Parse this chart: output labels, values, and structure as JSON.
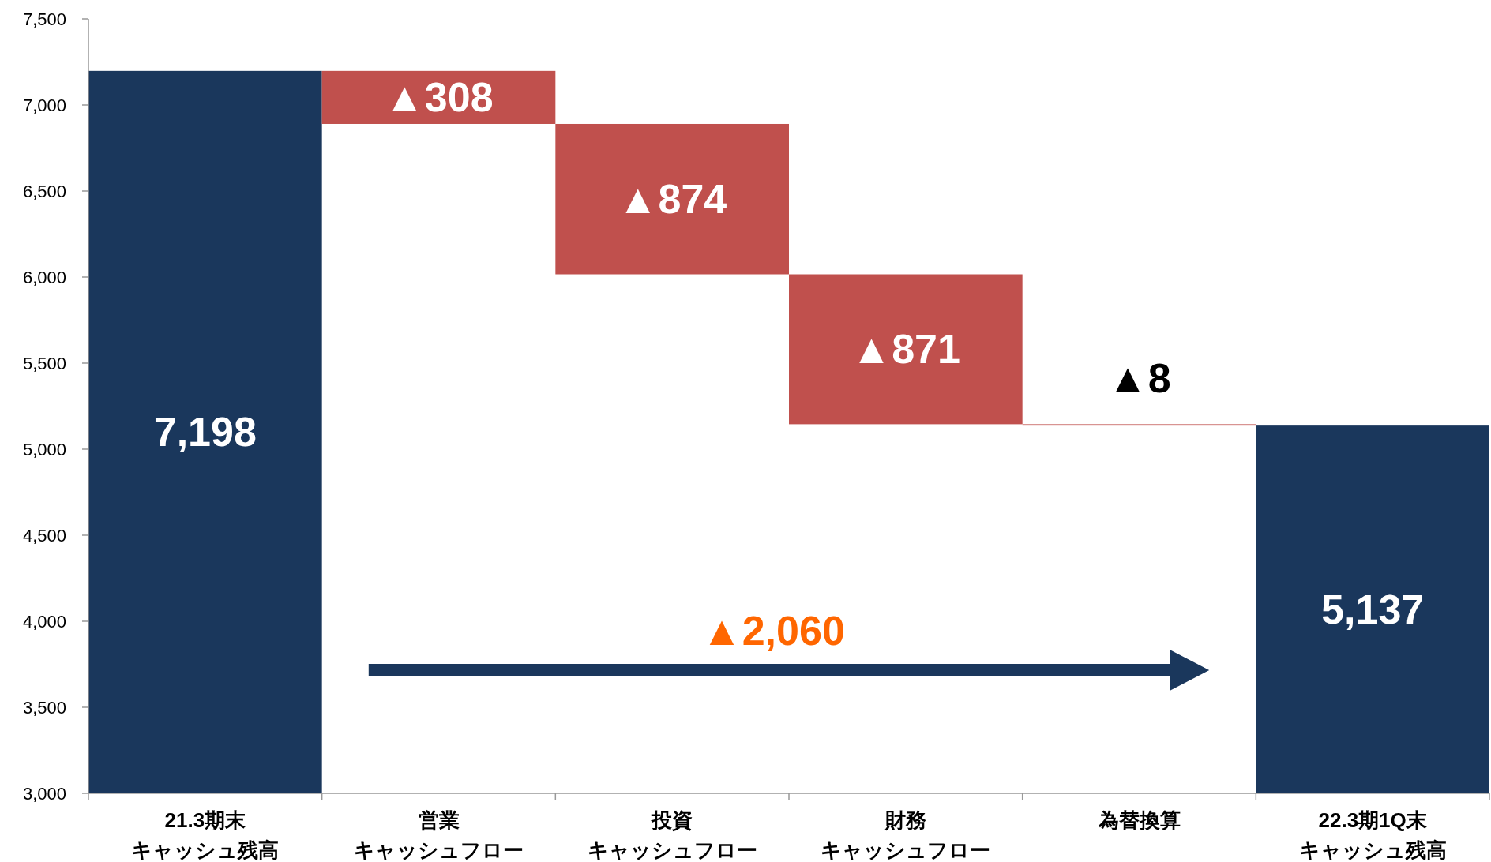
{
  "chart_data": {
    "type": "bar",
    "categories": [
      "21.3期末キャッシュ残高",
      "営業キャッシュフロー",
      "投資キャッシュフロー",
      "財務キャッシュフロー",
      "為替換算",
      "22.3期1Q末キャッシュ残高"
    ],
    "values": [
      7198,
      -308,
      -874,
      -871,
      -8,
      5137
    ],
    "base": [
      null,
      7198,
      6890,
      6016,
      5145,
      null
    ],
    "colors": [
      "#1a375c",
      "#c0504d",
      "#c0504d",
      "#c0504d",
      "#c0504d",
      "#1a375c"
    ],
    "value_labels": [
      "7,198",
      "▲308",
      "▲874",
      "▲871",
      "▲8",
      "5,137"
    ],
    "ylim": [
      3000,
      7500
    ],
    "yticks": [
      {
        "value": 3000,
        "label": "3,000"
      },
      {
        "value": 3500,
        "label": "3,500"
      },
      {
        "value": 4000,
        "label": "4,000"
      },
      {
        "value": 4500,
        "label": "4,500"
      },
      {
        "value": 5000,
        "label": "5,000"
      },
      {
        "value": 5500,
        "label": "5,500"
      },
      {
        "value": 6000,
        "label": "6,000"
      },
      {
        "value": 6500,
        "label": "6,500"
      },
      {
        "value": 7000,
        "label": "7,000"
      },
      {
        "value": 7500,
        "label": "7,500"
      }
    ],
    "annotations": [
      "▲2,060"
    ],
    "grid": false
  }
}
